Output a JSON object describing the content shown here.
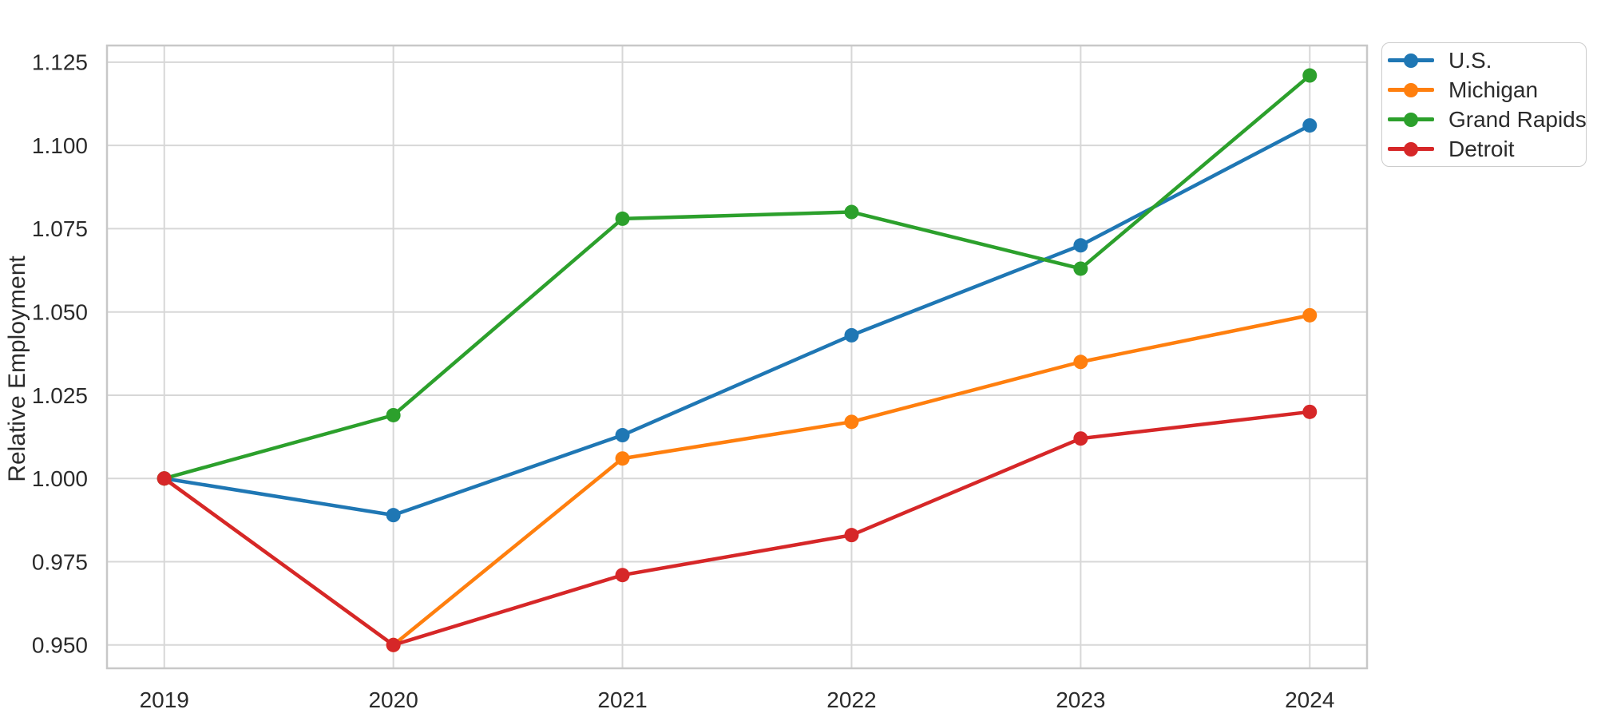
{
  "chart_data": {
    "type": "line",
    "title": "",
    "xlabel": "",
    "ylabel": "Relative Employment",
    "x": [
      2019,
      2020,
      2021,
      2022,
      2023,
      2024
    ],
    "xtick_labels": [
      "2019",
      "2020",
      "2021",
      "2022",
      "2023",
      "2024"
    ],
    "yticks": [
      0.95,
      0.975,
      1.0,
      1.025,
      1.05,
      1.075,
      1.1,
      1.125
    ],
    "ytick_labels": [
      "0.950",
      "0.975",
      "1.000",
      "1.025",
      "1.050",
      "1.075",
      "1.100",
      "1.125"
    ],
    "xlim": [
      2018.75,
      2024.25
    ],
    "ylim": [
      0.943,
      1.13
    ],
    "grid": true,
    "legend_position": "outside-upper-right",
    "series": [
      {
        "name": "U.S.",
        "color": "#1f77b4",
        "values": [
          1.0,
          0.989,
          1.013,
          1.043,
          1.07,
          1.106
        ]
      },
      {
        "name": "Michigan",
        "color": "#ff7f0e",
        "values": [
          1.0,
          0.95,
          1.006,
          1.017,
          1.035,
          1.049
        ]
      },
      {
        "name": "Grand Rapids",
        "color": "#2ca02c",
        "values": [
          1.0,
          1.019,
          1.078,
          1.08,
          1.063,
          1.121
        ]
      },
      {
        "name": "Detroit",
        "color": "#d62728",
        "values": [
          1.0,
          0.95,
          0.971,
          0.983,
          1.012,
          1.02
        ]
      }
    ],
    "marker": "circle"
  },
  "colors": {
    "background": "#ffffff",
    "grid": "#d7d7d7",
    "axis_border": "#c8c8c8",
    "tick_text": "#2b2b2b"
  }
}
